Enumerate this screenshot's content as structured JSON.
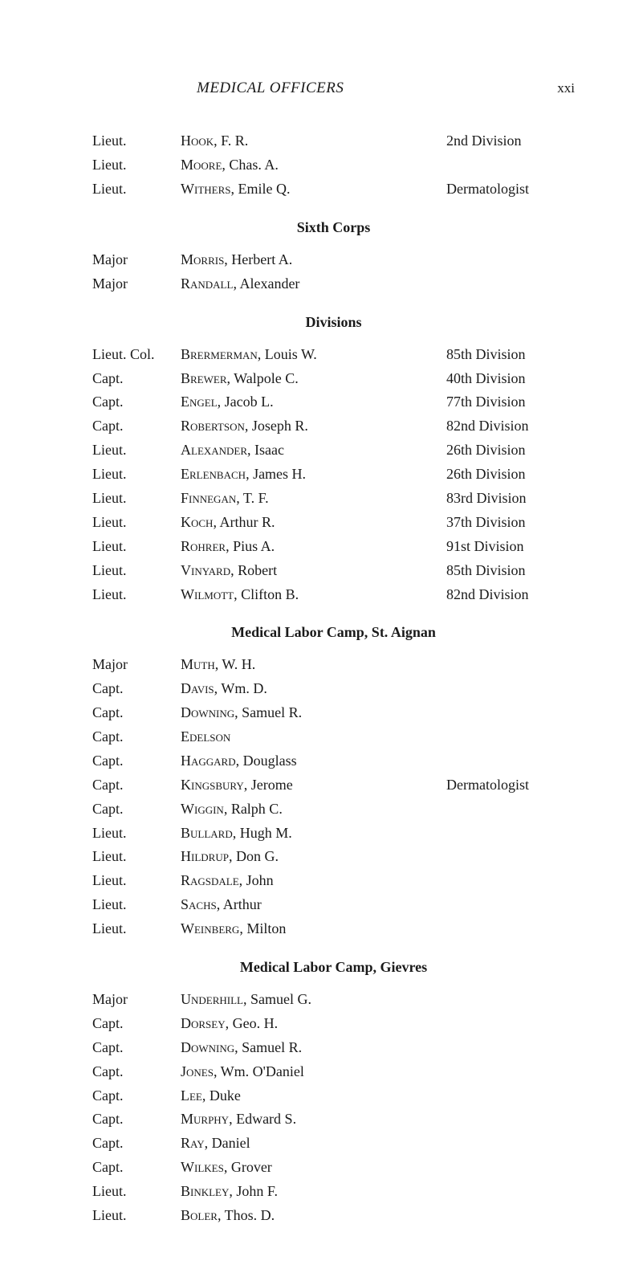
{
  "header": {
    "title": "MEDICAL OFFICERS",
    "page_num": "xxi"
  },
  "top_block": [
    {
      "rank": "Lieut.",
      "surname": "Hook",
      "rest": ", F. R.",
      "note": "2nd Division"
    },
    {
      "rank": "Lieut.",
      "surname": "Moore",
      "rest": ", Chas. A.",
      "note": ""
    },
    {
      "rank": "Lieut.",
      "surname": "Withers",
      "rest": ", Emile Q.",
      "note": "Dermatologist"
    }
  ],
  "sixth_corps": {
    "heading": "Sixth Corps",
    "entries": [
      {
        "rank": "Major",
        "surname": "Morris",
        "rest": ", Herbert A.",
        "note": ""
      },
      {
        "rank": "Major",
        "surname": "Randall",
        "rest": ", Alexander",
        "note": ""
      }
    ]
  },
  "divisions": {
    "heading": "Divisions",
    "entries": [
      {
        "rank": "Lieut. Col.",
        "surname": "Brermerman",
        "rest": ", Louis W.",
        "note": "85th Division"
      },
      {
        "rank": "Capt.",
        "surname": "Brewer",
        "rest": ", Walpole C.",
        "note": "40th Division"
      },
      {
        "rank": "Capt.",
        "surname": "Engel",
        "rest": ", Jacob L.",
        "note": "77th Division"
      },
      {
        "rank": "Capt.",
        "surname": "Robertson",
        "rest": ", Joseph R.",
        "note": "82nd Division"
      },
      {
        "rank": "Lieut.",
        "surname": "Alexander",
        "rest": ", Isaac",
        "note": "26th Division"
      },
      {
        "rank": "Lieut.",
        "surname": "Erlenbach",
        "rest": ", James H.",
        "note": "26th Division"
      },
      {
        "rank": "Lieut.",
        "surname": "Finnegan",
        "rest": ", T. F.",
        "note": "83rd Division"
      },
      {
        "rank": "Lieut.",
        "surname": "Koch",
        "rest": ", Arthur R.",
        "note": "37th Division"
      },
      {
        "rank": "Lieut.",
        "surname": "Rohrer",
        "rest": ", Pius A.",
        "note": "91st Division"
      },
      {
        "rank": "Lieut.",
        "surname": "Vinyard",
        "rest": ", Robert",
        "note": "85th Division"
      },
      {
        "rank": "Lieut.",
        "surname": "Wilmott",
        "rest": ", Clifton B.",
        "note": "82nd Division"
      }
    ]
  },
  "aignan": {
    "heading": "Medical Labor Camp, St. Aignan",
    "entries": [
      {
        "rank": "Major",
        "surname": "Muth",
        "rest": ", W. H.",
        "note": ""
      },
      {
        "rank": "Capt.",
        "surname": "Davis",
        "rest": ", Wm. D.",
        "note": ""
      },
      {
        "rank": "Capt.",
        "surname": "Downing",
        "rest": ", Samuel R.",
        "note": ""
      },
      {
        "rank": "Capt.",
        "surname": "Edelson",
        "rest": "",
        "note": ""
      },
      {
        "rank": "Capt.",
        "surname": "Haggard",
        "rest": ", Douglass",
        "note": ""
      },
      {
        "rank": "Capt.",
        "surname": "Kingsbury",
        "rest": ", Jerome",
        "note": "Dermatologist"
      },
      {
        "rank": "Capt.",
        "surname": "Wiggin",
        "rest": ", Ralph C.",
        "note": ""
      },
      {
        "rank": "Lieut.",
        "surname": "Bullard",
        "rest": ", Hugh M.",
        "note": ""
      },
      {
        "rank": "Lieut.",
        "surname": "Hildrup",
        "rest": ", Don G.",
        "note": ""
      },
      {
        "rank": "Lieut.",
        "surname": "Ragsdale",
        "rest": ", John",
        "note": ""
      },
      {
        "rank": "Lieut.",
        "surname": "Sachs",
        "rest": ", Arthur",
        "note": ""
      },
      {
        "rank": "Lieut.",
        "surname": "Weinberg",
        "rest": ", Milton",
        "note": ""
      }
    ]
  },
  "gievres": {
    "heading": "Medical Labor Camp, Gievres",
    "entries": [
      {
        "rank": "Major",
        "surname": "Underhill",
        "rest": ", Samuel G.",
        "note": ""
      },
      {
        "rank": "Capt.",
        "surname": "Dorsey",
        "rest": ", Geo. H.",
        "note": ""
      },
      {
        "rank": "Capt.",
        "surname": "Downing",
        "rest": ", Samuel R.",
        "note": ""
      },
      {
        "rank": "Capt.",
        "surname": "Jones",
        "rest": ", Wm. O'Daniel",
        "note": ""
      },
      {
        "rank": "Capt.",
        "surname": "Lee",
        "rest": ", Duke",
        "note": ""
      },
      {
        "rank": "Capt.",
        "surname": "Murphy",
        "rest": ", Edward S.",
        "note": ""
      },
      {
        "rank": "Capt.",
        "surname": "Ray",
        "rest": ", Daniel",
        "note": ""
      },
      {
        "rank": "Capt.",
        "surname": "Wilkes",
        "rest": ", Grover",
        "note": ""
      },
      {
        "rank": "Lieut.",
        "surname": "Binkley",
        "rest": ", John F.",
        "note": ""
      },
      {
        "rank": "Lieut.",
        "surname": "Boler",
        "rest": ", Thos. D.",
        "note": ""
      }
    ]
  }
}
